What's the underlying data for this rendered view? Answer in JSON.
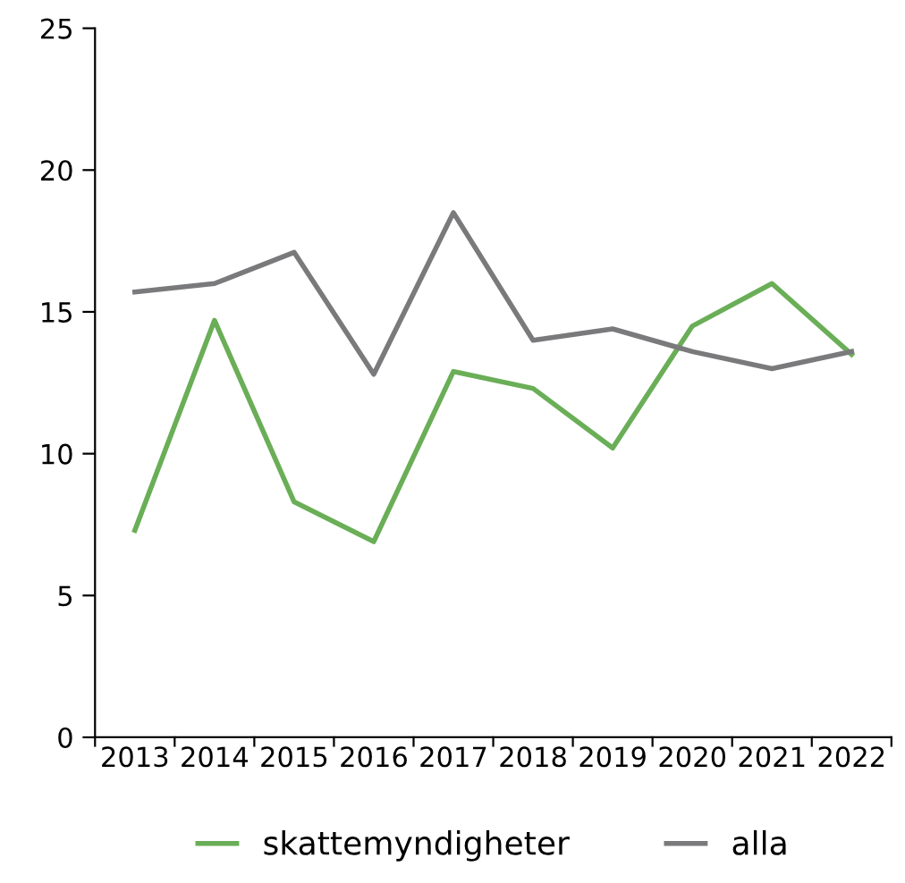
{
  "chart_data": {
    "type": "line",
    "categories": [
      "2013",
      "2014",
      "2015",
      "2016",
      "2017",
      "2018",
      "2019",
      "2020",
      "2021",
      "2022"
    ],
    "series": [
      {
        "name": "skattemyndigheter",
        "color": "#6aae57",
        "values": [
          7.3,
          14.7,
          8.3,
          6.9,
          12.9,
          12.3,
          10.2,
          14.5,
          16.0,
          13.5
        ]
      },
      {
        "name": "alla",
        "color": "#7a7a7c",
        "values": [
          15.7,
          16.0,
          17.1,
          12.8,
          18.5,
          14.0,
          14.4,
          13.6,
          13.0,
          13.6
        ]
      }
    ],
    "ylim": [
      0,
      25
    ],
    "yticks": [
      0,
      5,
      10,
      15,
      20,
      25
    ],
    "grid": false,
    "legend": "bottom",
    "marker": "none",
    "line_style": "solid"
  }
}
